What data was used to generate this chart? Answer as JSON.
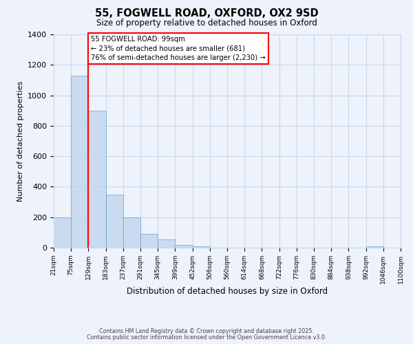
{
  "title": "55, FOGWELL ROAD, OXFORD, OX2 9SD",
  "subtitle": "Size of property relative to detached houses in Oxford",
  "bar_values": [
    200,
    1130,
    900,
    350,
    200,
    90,
    55,
    20,
    10,
    0,
    0,
    0,
    0,
    0,
    0,
    0,
    0,
    0,
    10,
    0
  ],
  "bin_labels": [
    "21sqm",
    "75sqm",
    "129sqm",
    "183sqm",
    "237sqm",
    "291sqm",
    "345sqm",
    "399sqm",
    "452sqm",
    "506sqm",
    "560sqm",
    "614sqm",
    "668sqm",
    "722sqm",
    "776sqm",
    "830sqm",
    "884sqm",
    "938sqm",
    "992sqm",
    "1046sqm",
    "1100sqm"
  ],
  "bar_color": "#b8d0ea",
  "bar_edge_color": "#5a9fd4",
  "bar_alpha": 0.65,
  "grid_color": "#c8d8ee",
  "background_color": "#eef2fb",
  "red_line_x": 2.0,
  "xlabel": "Distribution of detached houses by size in Oxford",
  "ylabel": "Number of detached properties",
  "ylim": [
    0,
    1400
  ],
  "yticks": [
    0,
    200,
    400,
    600,
    800,
    1000,
    1200,
    1400
  ],
  "annotation_title": "55 FOGWELL ROAD: 99sqm",
  "annotation_line1": "← 23% of detached houses are smaller (681)",
  "annotation_line2": "76% of semi-detached houses are larger (2,230) →",
  "footer1": "Contains HM Land Registry data © Crown copyright and database right 2025.",
  "footer2": "Contains public sector information licensed under the Open Government Licence v3.0."
}
